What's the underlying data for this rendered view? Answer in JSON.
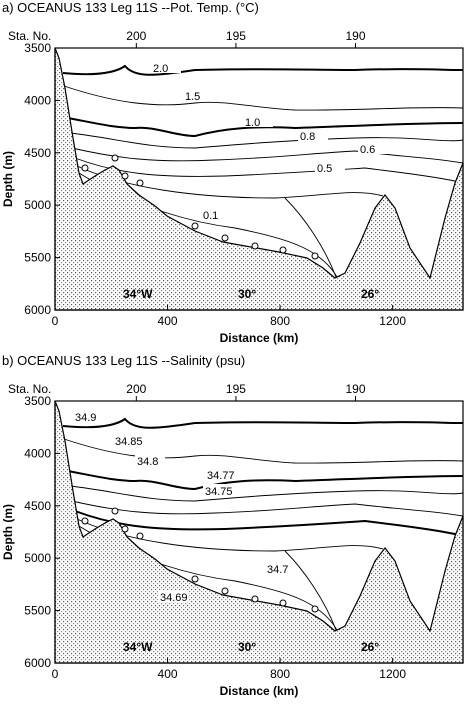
{
  "chart_data": [
    {
      "type": "contour",
      "title": "a)  OCEANUS 133 Leg 11S --Pot. Temp. (°C)",
      "xlabel": "Distance (km)",
      "ylabel": "Depth (m)",
      "xlim": [
        0,
        1450
      ],
      "ylim": [
        3500,
        6000
      ],
      "xticks": [
        0,
        400,
        800,
        1200
      ],
      "yticks": [
        3500,
        4000,
        4500,
        5000,
        5500,
        6000
      ],
      "station_label": "Sta. No.",
      "station_ticks": [
        {
          "value": 289,
          "label": "200"
        },
        {
          "value": 643,
          "label": "195"
        },
        {
          "value": 1068,
          "label": "190"
        }
      ],
      "annotations": [
        "34°W",
        "30°",
        "26°"
      ],
      "contours": [
        {
          "value": 2,
          "label": "2.0"
        },
        1.5,
        {
          "value": 1,
          "label": "1.0"
        },
        0.8,
        0.6,
        0.5,
        0.1
      ]
    },
    {
      "type": "contour",
      "title": "b)  OCEANUS 133 Leg 11S --Salinity (psu)",
      "xlabel": "Distance (km)",
      "ylabel": "Depth (m)",
      "xlim": [
        0,
        1450
      ],
      "ylim": [
        3500,
        6000
      ],
      "xticks": [
        0,
        400,
        800,
        1200
      ],
      "yticks": [
        3500,
        4000,
        4500,
        5000,
        5500,
        6000
      ],
      "station_label": "Sta. No.",
      "station_ticks": [
        {
          "value": 289,
          "label": "200"
        },
        {
          "value": 643,
          "label": "195"
        },
        {
          "value": 1068,
          "label": "190"
        }
      ],
      "annotations": [
        "34°W",
        "30°",
        "26°"
      ],
      "contours": [
        34.9,
        34.85,
        34.8,
        34.77,
        34.75,
        34.7,
        34.69
      ]
    }
  ]
}
